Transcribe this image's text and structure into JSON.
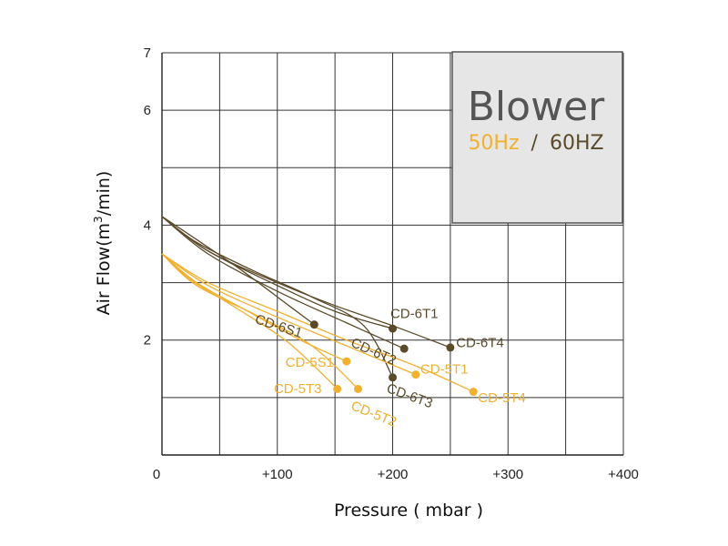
{
  "legend": {
    "title": "Blower",
    "hz50": "50Hz",
    "separator": "/",
    "hz60": "60HZ",
    "color50": "#F0B030",
    "color60": "#5A4A2A",
    "box_fill": "#E6E6E6"
  },
  "chart_data": {
    "type": "line",
    "title": "",
    "xlabel": "Pressure ( mbar )",
    "ylabel_base": "Air Flow(m",
    "ylabel_sup": "3",
    "ylabel_tail": "/min)",
    "xlim": [
      0,
      400
    ],
    "ylim": [
      0,
      7
    ],
    "x_ticks": [
      {
        "v": 0,
        "label": "0"
      },
      {
        "v": 100,
        "label": "+100"
      },
      {
        "v": 200,
        "label": "+200"
      },
      {
        "v": 300,
        "label": "+300"
      },
      {
        "v": 400,
        "label": "+400"
      }
    ],
    "y_ticks": [
      {
        "v": 2,
        "label": "2"
      },
      {
        "v": 4,
        "label": "4"
      },
      {
        "v": 6,
        "label": "6"
      },
      {
        "v": 7,
        "label": "7"
      }
    ],
    "x_grid": [
      50,
      100,
      150,
      200,
      250,
      300,
      350,
      400
    ],
    "y_grid": [
      1,
      2,
      3,
      4,
      5,
      6,
      7
    ],
    "grid": true,
    "series": [
      {
        "name": "CD-6S1",
        "group": "60",
        "points": [
          [
            0,
            4.15
          ],
          [
            30,
            3.75
          ],
          [
            70,
            3.2
          ],
          [
            110,
            2.6
          ],
          [
            132,
            2.27
          ]
        ]
      },
      {
        "name": "CD-6T1",
        "group": "60",
        "points": [
          [
            0,
            4.15
          ],
          [
            40,
            3.55
          ],
          [
            100,
            2.95
          ],
          [
            150,
            2.5
          ],
          [
            200,
            2.2
          ]
        ]
      },
      {
        "name": "CD-6T2",
        "group": "60",
        "points": [
          [
            0,
            4.15
          ],
          [
            40,
            3.5
          ],
          [
            100,
            2.85
          ],
          [
            160,
            2.3
          ],
          [
            210,
            1.85
          ]
        ]
      },
      {
        "name": "CD-6T3",
        "group": "60",
        "points": [
          [
            0,
            4.15
          ],
          [
            30,
            3.7
          ],
          [
            80,
            3.2
          ],
          [
            130,
            2.75
          ],
          [
            175,
            2.25
          ],
          [
            200,
            1.35
          ]
        ]
      },
      {
        "name": "CD-6T4",
        "group": "60",
        "points": [
          [
            0,
            4.15
          ],
          [
            40,
            3.55
          ],
          [
            100,
            3.0
          ],
          [
            150,
            2.6
          ],
          [
            200,
            2.25
          ],
          [
            250,
            1.87
          ]
        ]
      },
      {
        "name": "CD-5S1",
        "group": "50",
        "points": [
          [
            0,
            3.5
          ],
          [
            30,
            3.0
          ],
          [
            70,
            2.55
          ],
          [
            120,
            2.0
          ],
          [
            160,
            1.63
          ]
        ]
      },
      {
        "name": "CD-5T1",
        "group": "50",
        "points": [
          [
            0,
            3.5
          ],
          [
            40,
            2.95
          ],
          [
            100,
            2.4
          ],
          [
            160,
            1.9
          ],
          [
            220,
            1.4
          ]
        ]
      },
      {
        "name": "CD-5T2",
        "group": "50",
        "points": [
          [
            0,
            3.5
          ],
          [
            30,
            2.95
          ],
          [
            80,
            2.45
          ],
          [
            130,
            1.9
          ],
          [
            170,
            1.15
          ]
        ]
      },
      {
        "name": "CD-5T3",
        "group": "50",
        "points": [
          [
            0,
            3.5
          ],
          [
            25,
            3.05
          ],
          [
            65,
            2.55
          ],
          [
            110,
            1.95
          ],
          [
            152,
            1.15
          ]
        ]
      },
      {
        "name": "CD-5T4",
        "group": "50",
        "points": [
          [
            0,
            3.5
          ],
          [
            40,
            3.0
          ],
          [
            100,
            2.5
          ],
          [
            160,
            2.0
          ],
          [
            220,
            1.55
          ],
          [
            270,
            1.1
          ]
        ]
      }
    ],
    "labels": [
      {
        "text": "CD-6S1",
        "series": "CD-6S1",
        "x": 80,
        "y": 2.3,
        "rot": 18
      },
      {
        "text": "CD-6T1",
        "series": "CD-6T1",
        "x": 198,
        "y": 2.38,
        "rot": 0
      },
      {
        "text": "CD-6T2",
        "series": "CD-6T2",
        "x": 163,
        "y": 1.9,
        "rot": 24
      },
      {
        "text": "CD-6T3",
        "series": "CD-6T3",
        "x": 194,
        "y": 1.1,
        "rot": 20
      },
      {
        "text": "CD-6T4",
        "series": "CD-6T4",
        "x": 255,
        "y": 1.88,
        "rot": 0
      },
      {
        "text": "CD-5S1",
        "series": "CD-5S1",
        "x": 107,
        "y": 1.54,
        "rot": 0
      },
      {
        "text": "CD-5T1",
        "series": "CD-5T1",
        "x": 224,
        "y": 1.42,
        "rot": 0
      },
      {
        "text": "CD-5T2",
        "series": "CD-5T2",
        "x": 163,
        "y": 0.8,
        "rot": 22
      },
      {
        "text": "CD-5T3",
        "series": "CD-5T3",
        "x": 97,
        "y": 1.08,
        "rot": 0
      },
      {
        "text": "CD-5T4",
        "series": "CD-5T4",
        "x": 274,
        "y": 0.92,
        "rot": 0
      }
    ]
  }
}
